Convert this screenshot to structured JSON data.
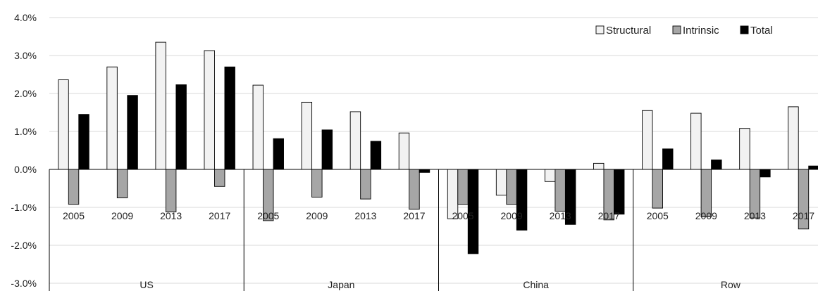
{
  "chart_data": {
    "type": "bar",
    "title": "",
    "xlabel": "",
    "ylabel": "",
    "ylim": [
      -0.03,
      0.04
    ],
    "yticks": [
      -0.03,
      -0.02,
      -0.01,
      0.0,
      0.01,
      0.02,
      0.03,
      0.04
    ],
    "ytick_labels": [
      "-3.0%",
      "-2.0%",
      "-1.0%",
      "0.0%",
      "1.0%",
      "2.0%",
      "3.0%",
      "4.0%"
    ],
    "grid": "horizontal",
    "legend_position": "top-right",
    "groups": [
      "US",
      "Japan",
      "China",
      "Row"
    ],
    "years": [
      "2005",
      "2009",
      "2013",
      "2017"
    ],
    "series": [
      {
        "name": "Structural",
        "color": "#f2f2f2",
        "values": [
          0.0236,
          0.027,
          0.0335,
          0.0313,
          0.0222,
          0.0177,
          0.0152,
          0.0096,
          -0.013,
          -0.0068,
          -0.0032,
          0.0016,
          0.0155,
          0.0148,
          0.0108,
          0.0165
        ]
      },
      {
        "name": "Intrinsic",
        "color": "#a6a6a6",
        "values": [
          -0.0092,
          -0.0075,
          -0.0112,
          -0.0045,
          -0.0135,
          -0.0073,
          -0.0078,
          -0.0105,
          -0.0092,
          -0.0092,
          -0.011,
          -0.0133,
          -0.0102,
          -0.0125,
          -0.0128,
          -0.0157
        ]
      },
      {
        "name": "Total",
        "color": "#000000",
        "values": [
          0.0145,
          0.0195,
          0.0223,
          0.027,
          0.0081,
          0.0104,
          0.0074,
          -0.0008,
          -0.0222,
          -0.016,
          -0.0145,
          -0.0118,
          0.0054,
          0.0025,
          -0.002,
          0.0009
        ]
      }
    ]
  }
}
